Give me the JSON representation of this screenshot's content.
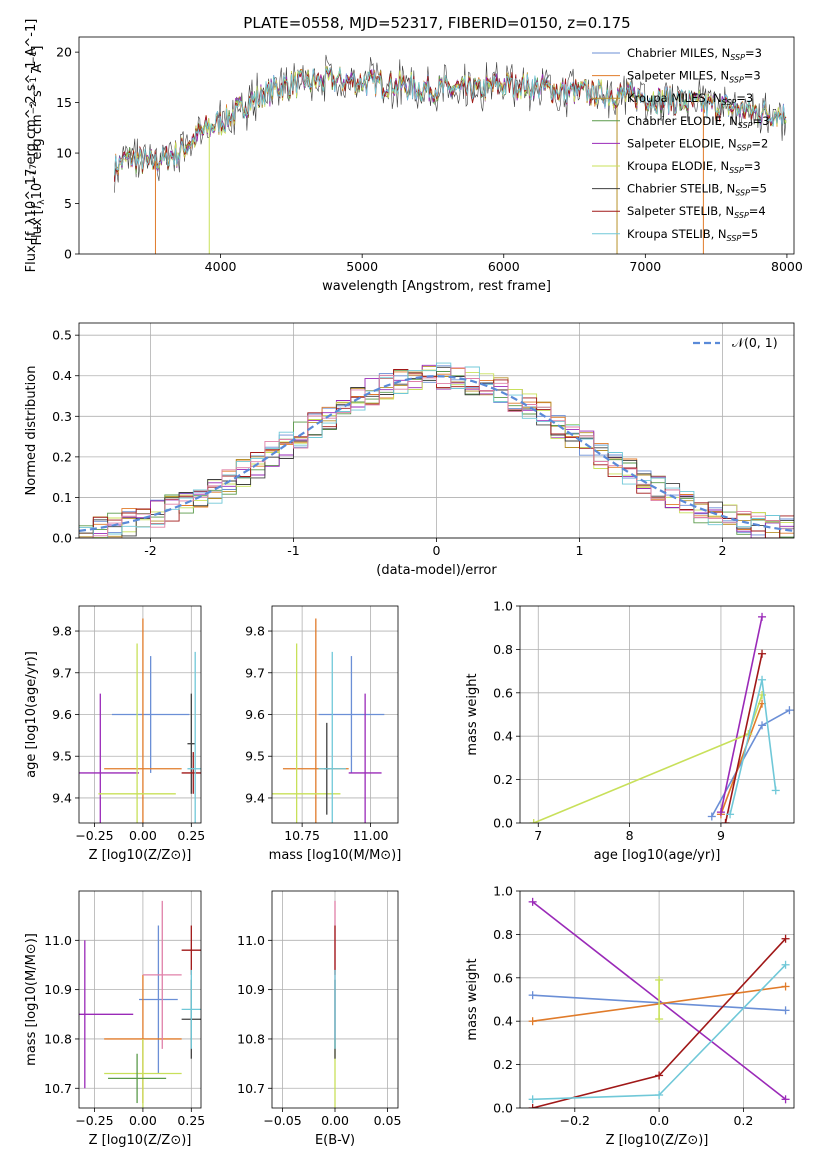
{
  "figure_title": "PLATE=0558, MJD=52317, FIBERID=0150, z=0.175",
  "colors": {
    "Chabrier MILES": "#6b8fd6",
    "Salpeter MILES": "#e07b2a",
    "Kroupa MILES": "#b8902a",
    "Chabrier ELODIE": "#5a9a4a",
    "Salpeter ELODIE": "#9a2ab8",
    "Kroupa ELODIE": "#c8e05a",
    "Chabrier STELIB": "#404040",
    "Salpeter STELIB": "#a01818",
    "Kroupa STELIB": "#70c8d8",
    "pink": "#e080a8",
    "normal": "#5a8ad8"
  },
  "chart_data": [
    {
      "type": "line",
      "id": "spectrum",
      "title": "PLATE=0558, MJD=52317, FIBERID=0150, z=0.175",
      "xlabel": "wavelength [Angstrom, rest frame]",
      "ylabel": "Flux [f_λ10^-17 erg cm^-2 s^-1 A^-1]",
      "xlim": [
        3000,
        8050
      ],
      "ylim": [
        0,
        21.5
      ],
      "xticks": [
        4000,
        5000,
        6000,
        7000,
        8000
      ],
      "yticks": [
        0,
        5,
        10,
        15,
        20
      ],
      "grid": false,
      "legend_position": "top-right",
      "legend": [
        "Chabrier MILES, N_SSP=3",
        "Salpeter MILES, N_SSP=3",
        "Kroupa MILES, N_SSP=3",
        "Chabrier ELODIE, N_SSP=3",
        "Salpeter ELODIE, N_SSP=2",
        "Kroupa ELODIE, N_SSP=3",
        "Chabrier STELIB, N_SSP=5",
        "Salpeter STELIB, N_SSP=4",
        "Kroupa STELIB, N_SSP=5"
      ],
      "continuum": {
        "x": [
          3250,
          3350,
          3500,
          3700,
          3900,
          4000,
          4200,
          4400,
          4600,
          4800,
          5000,
          5200,
          5400,
          5600,
          5800,
          6000,
          6200,
          6400,
          6600,
          6800,
          7000,
          7200,
          7400,
          7600,
          7800,
          8000
        ],
        "y": [
          8.5,
          9.5,
          9.0,
          10.0,
          12.5,
          13.0,
          15.0,
          16.5,
          17.0,
          17.3,
          17.0,
          16.8,
          16.5,
          16.3,
          16.2,
          16.8,
          16.6,
          16.2,
          16.0,
          15.8,
          15.5,
          15.2,
          14.8,
          14.5,
          14.0,
          13.8
        ]
      }
    },
    {
      "type": "line",
      "id": "residual_histogram",
      "xlabel": "(data-model)/error",
      "ylabel": "Normed distribution",
      "xlim": [
        -2.5,
        2.5
      ],
      "ylim": [
        0,
        0.53
      ],
      "xticks": [
        -2,
        -1,
        0,
        1,
        2
      ],
      "yticks": [
        0.0,
        0.1,
        0.2,
        0.3,
        0.4,
        0.5
      ],
      "grid": true,
      "legend_position": "top-right",
      "legend": [
        "𝒩(0, 1)"
      ]
    },
    {
      "type": "scatter",
      "id": "age_vs_Z",
      "xlabel": "Z [log10(Z/Z⊙)]",
      "ylabel": "age [log10(age/yr)]",
      "xlim": [
        -0.33,
        0.3
      ],
      "ylim": [
        9.34,
        9.86
      ],
      "xticks": [
        -0.25,
        0.0,
        0.25
      ],
      "xtick_labels": [
        "−0.25",
        "0.00",
        "0.25"
      ],
      "yticks": [
        9.4,
        9.5,
        9.6,
        9.7,
        9.8
      ],
      "grid": true,
      "points": [
        {
          "model": "Chabrier MILES",
          "x": 0.04,
          "y": 9.6,
          "xerr": 0.2,
          "yerr": 0.14
        },
        {
          "model": "Salpeter MILES",
          "x": 0.0,
          "y": 9.47,
          "xerr": 0.2,
          "yerr": 0.36
        },
        {
          "model": "Salpeter ELODIE",
          "x": -0.22,
          "y": 9.46,
          "xerr": 0.2,
          "yerr": 0.19
        },
        {
          "model": "Kroupa ELODIE",
          "x": -0.03,
          "y": 9.41,
          "xerr": 0.2,
          "yerr": 0.36
        },
        {
          "model": "Chabrier STELIB",
          "x": 0.25,
          "y": 9.53,
          "xerr": 0.02,
          "yerr": 0.12
        },
        {
          "model": "Salpeter STELIB",
          "x": 0.26,
          "y": 9.46,
          "xerr": 0.06,
          "yerr": 0.05
        },
        {
          "model": "Kroupa STELIB",
          "x": 0.27,
          "y": 9.47,
          "xerr": 0.04,
          "yerr": 0.28
        }
      ]
    },
    {
      "type": "scatter",
      "id": "age_vs_mass",
      "xlabel": "mass [log10(M/M⊙)]",
      "ylabel": "",
      "xlim": [
        10.64,
        11.1
      ],
      "ylim": [
        9.34,
        9.86
      ],
      "xticks": [
        10.75,
        11.0
      ],
      "xtick_labels": [
        "10.75",
        "11.00"
      ],
      "yticks": [
        9.4,
        9.5,
        9.6,
        9.7,
        9.8
      ],
      "grid": true,
      "points": [
        {
          "model": "Chabrier MILES",
          "x": 10.93,
          "y": 9.6,
          "xerr": 0.12,
          "yerr": 0.14
        },
        {
          "model": "Salpeter MILES",
          "x": 10.8,
          "y": 9.47,
          "xerr": 0.12,
          "yerr": 0.36
        },
        {
          "model": "Salpeter ELODIE",
          "x": 10.98,
          "y": 9.46,
          "xerr": 0.06,
          "yerr": 0.19
        },
        {
          "model": "Kroupa ELODIE",
          "x": 10.73,
          "y": 9.41,
          "xerr": 0.16,
          "yerr": 0.36
        },
        {
          "model": "Chabrier STELIB",
          "x": 10.84,
          "y": 9.47,
          "xerr": 0.01,
          "yerr": 0.11
        },
        {
          "model": "Kroupa STELIB",
          "x": 10.86,
          "y": 9.47,
          "xerr": 0.05,
          "yerr": 0.28
        }
      ]
    },
    {
      "type": "line",
      "id": "mass_weight_vs_age",
      "xlabel": "age [log10(age/yr)]",
      "ylabel": "mass weight",
      "xlim": [
        6.8,
        9.8
      ],
      "ylim": [
        0,
        1.0
      ],
      "xticks": [
        7,
        8,
        9
      ],
      "yticks": [
        0.0,
        0.2,
        0.4,
        0.6,
        0.8,
        1.0
      ],
      "grid": true,
      "series": [
        {
          "name": "Chabrier MILES",
          "x": [
            8.9,
            9.45,
            9.75
          ],
          "y": [
            0.03,
            0.45,
            0.52
          ]
        },
        {
          "name": "Salpeter MILES",
          "x": [
            9.0,
            9.45
          ],
          "y": [
            0.04,
            0.55
          ]
        },
        {
          "name": "Salpeter ELODIE",
          "x": [
            9.0,
            9.45
          ],
          "y": [
            0.05,
            0.95
          ]
        },
        {
          "name": "Kroupa ELODIE",
          "x": [
            6.95,
            9.3,
            9.45
          ],
          "y": [
            0.0,
            0.41,
            0.59
          ]
        },
        {
          "name": "Salpeter STELIB",
          "x": [
            9.05,
            9.45
          ],
          "y": [
            0.0,
            0.78
          ]
        },
        {
          "name": "Kroupa STELIB",
          "x": [
            9.1,
            9.45,
            9.6
          ],
          "y": [
            0.04,
            0.66,
            0.15
          ]
        }
      ]
    },
    {
      "type": "scatter",
      "id": "mass_vs_Z",
      "xlabel": "Z [log10(Z/Z⊙)]",
      "ylabel": "mass [log10(M/M⊙)]",
      "xlim": [
        -0.33,
        0.3
      ],
      "ylim": [
        10.66,
        11.1
      ],
      "xticks": [
        -0.25,
        0.0,
        0.25
      ],
      "xtick_labels": [
        "−0.25",
        "0.00",
        "0.25"
      ],
      "yticks": [
        10.7,
        10.8,
        10.9,
        11.0
      ],
      "ytick_labels": [
        "10.7",
        "10.8",
        "10.9",
        "11.0"
      ],
      "grid": true,
      "points": [
        {
          "model": "Chabrier MILES",
          "x": 0.08,
          "y": 10.88,
          "xerr": 0.1,
          "yerr": 0.15
        },
        {
          "model": "Salpeter MILES",
          "x": 0.0,
          "y": 10.8,
          "xerr": 0.2,
          "yerr": 0.13
        },
        {
          "model": "pink",
          "x": 0.1,
          "y": 10.93,
          "xerr": 0.1,
          "yerr": 0.15
        },
        {
          "model": "Salpeter ELODIE",
          "x": -0.3,
          "y": 10.85,
          "xerr": 0.25,
          "yerr": 0.15
        },
        {
          "model": "Kroupa ELODIE",
          "x": 0.0,
          "y": 10.73,
          "xerr": 0.2,
          "yerr": 0.07
        },
        {
          "model": "Chabrier ELODIE",
          "x": -0.03,
          "y": 10.72,
          "xerr": 0.15,
          "yerr": 0.05
        },
        {
          "model": "Salpeter STELIB",
          "x": 0.25,
          "y": 10.98,
          "xerr": 0.05,
          "yerr": 0.05
        },
        {
          "model": "Chabrier STELIB",
          "x": 0.25,
          "y": 10.84,
          "xerr": 0.05,
          "yerr": 0.08
        },
        {
          "model": "Kroupa STELIB",
          "x": 0.25,
          "y": 10.86,
          "xerr": 0.05,
          "yerr": 0.08
        }
      ]
    },
    {
      "type": "scatter",
      "id": "mass_vs_EBV",
      "xlabel": "E(B-V)",
      "ylabel": "",
      "xlim": [
        -0.06,
        0.06
      ],
      "ylim": [
        10.66,
        11.1
      ],
      "xticks": [
        -0.05,
        0.0,
        0.05
      ],
      "xtick_labels": [
        "−0.05",
        "0.00",
        "0.05"
      ],
      "yticks": [
        10.7,
        10.8,
        10.9,
        11.0
      ],
      "ytick_labels": [
        "10.7",
        "10.8",
        "10.9",
        "11.0"
      ],
      "grid": true,
      "points": [
        {
          "model": "pink",
          "x": 0.0,
          "y": 10.93,
          "yerr": 0.15
        },
        {
          "model": "Salpeter STELIB",
          "x": 0.0,
          "y": 10.98,
          "yerr": 0.05
        },
        {
          "model": "Kroupa ELODIE",
          "x": 0.0,
          "y": 10.73,
          "yerr": 0.07
        },
        {
          "model": "Chabrier STELIB",
          "x": 0.0,
          "y": 10.84,
          "yerr": 0.08
        },
        {
          "model": "Kroupa STELIB",
          "x": 0.0,
          "y": 10.86,
          "yerr": 0.08
        }
      ]
    },
    {
      "type": "line",
      "id": "mass_weight_vs_Z",
      "xlabel": "Z [log10(Z/Z⊙)]",
      "ylabel": "mass weight",
      "xlim": [
        -0.33,
        0.32
      ],
      "ylim": [
        0,
        1.0
      ],
      "xticks": [
        -0.2,
        0.0,
        0.2
      ],
      "xtick_labels": [
        "−0.2",
        "0.0",
        "0.2"
      ],
      "yticks": [
        0.0,
        0.2,
        0.4,
        0.6,
        0.8,
        1.0
      ],
      "grid": true,
      "series": [
        {
          "name": "Salpeter ELODIE",
          "x": [
            -0.3,
            0.3
          ],
          "y": [
            0.95,
            0.04
          ]
        },
        {
          "name": "Chabrier MILES",
          "x": [
            -0.3,
            0.3
          ],
          "y": [
            0.52,
            0.45
          ]
        },
        {
          "name": "Salpeter MILES",
          "x": [
            -0.3,
            0.3
          ],
          "y": [
            0.4,
            0.56
          ]
        },
        {
          "name": "Salpeter STELIB",
          "x": [
            -0.3,
            0.0,
            0.3
          ],
          "y": [
            0.0,
            0.15,
            0.78
          ]
        },
        {
          "name": "Kroupa STELIB",
          "x": [
            -0.3,
            0.0,
            0.3
          ],
          "y": [
            0.04,
            0.06,
            0.66
          ]
        },
        {
          "name": "Kroupa ELODIE",
          "x": [
            0.0,
            0.0
          ],
          "y": [
            0.41,
            0.59
          ]
        }
      ]
    }
  ]
}
